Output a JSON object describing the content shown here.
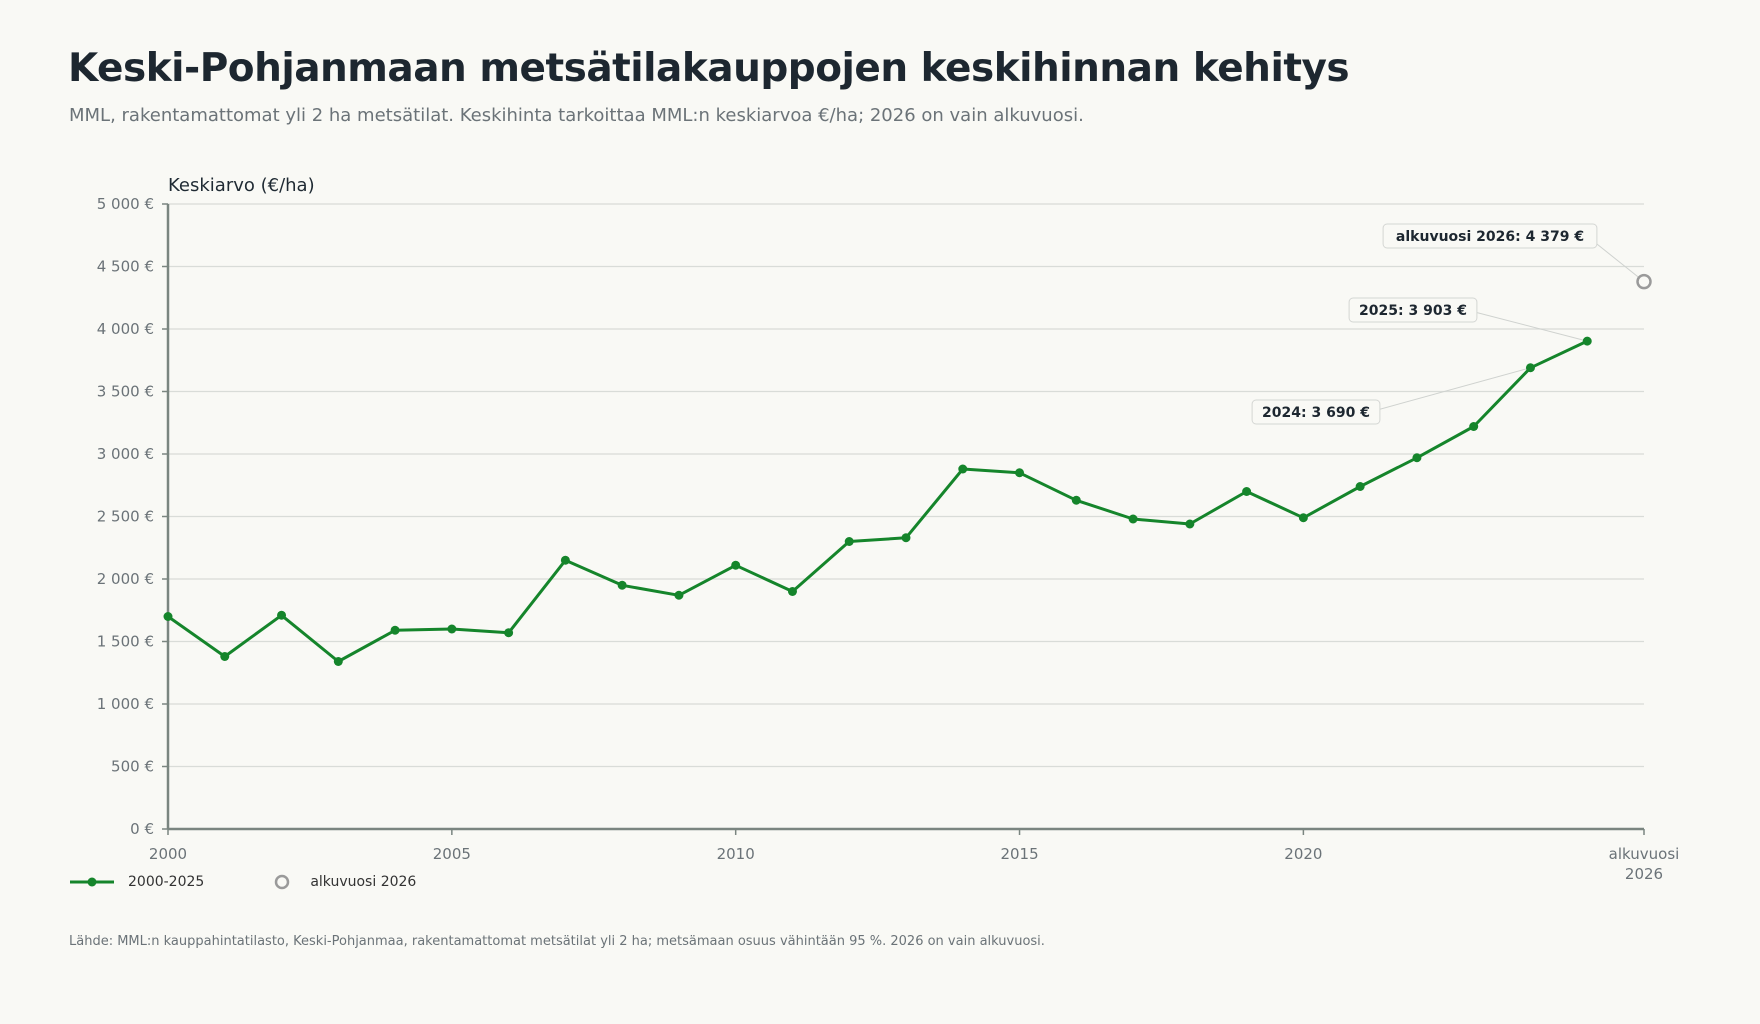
{
  "title": "Keski-Pohjanmaan metsätilakauppojen keskihinnan kehitys",
  "subtitle": "MML, rakentamattomat yli 2 ha metsätilat. Keskihinta tarkoittaa MML:n keskiarvoa €/ha; 2026 on vain alkuvuosi.",
  "source": "Lähde: MML:n kauppahintatilasto, Keski-Pohjanmaa, rakentamattomat metsätilat yli 2 ha; metsämaan osuus vähintään 95 %. 2026 on vain alkuvuosi.",
  "legend": {
    "series_main": "2000-2025",
    "series_partial": "alkuvuosi 2026"
  },
  "colors": {
    "line": "#15852b",
    "partial": "#9a9a9a",
    "grid": "#d9dcd8",
    "axis": "#7a8580"
  },
  "chart_data": {
    "type": "line",
    "ylabel": "Keskiarvo (€/ha)",
    "ylim": [
      0,
      5000
    ],
    "yticks": [
      0,
      500,
      1000,
      1500,
      2000,
      2500,
      3000,
      3500,
      4000,
      4500,
      5000
    ],
    "ytick_labels": [
      "0 €",
      "500 €",
      "1 000 €",
      "1 500 €",
      "2 000 €",
      "2 500 €",
      "3 000 €",
      "3 500 €",
      "4 000 €",
      "4 500 €",
      "5 000 €"
    ],
    "xlim": [
      2000,
      2026
    ],
    "xticks": [
      2000,
      2005,
      2010,
      2015,
      2020,
      2026
    ],
    "xtick_labels": [
      "2000",
      "2005",
      "2010",
      "2015",
      "2020",
      "alkuvuosi\n2026"
    ],
    "grid": true,
    "legend_position": "bottom-left",
    "series": [
      {
        "name": "2000-2025",
        "x": [
          2000,
          2001,
          2002,
          2003,
          2004,
          2005,
          2006,
          2007,
          2008,
          2009,
          2010,
          2011,
          2012,
          2013,
          2014,
          2015,
          2016,
          2017,
          2018,
          2019,
          2020,
          2021,
          2022,
          2023,
          2024,
          2025
        ],
        "y": [
          1700,
          1380,
          1710,
          1340,
          1590,
          1600,
          1570,
          2150,
          1950,
          1870,
          2110,
          1900,
          2300,
          2330,
          2880,
          2850,
          2630,
          2480,
          2440,
          2700,
          2490,
          2740,
          2970,
          3220,
          3690,
          3903
        ]
      },
      {
        "name": "alkuvuosi 2026",
        "x": [
          2026
        ],
        "y": [
          4379
        ]
      }
    ],
    "annotations": [
      {
        "x": 2024,
        "y": 3690,
        "text": "2024: 3 690 €"
      },
      {
        "x": 2025,
        "y": 3903,
        "text": "2025: 3 903 €"
      },
      {
        "x": 2026,
        "y": 4379,
        "text": "alkuvuosi 2026: 4 379 €"
      }
    ]
  }
}
